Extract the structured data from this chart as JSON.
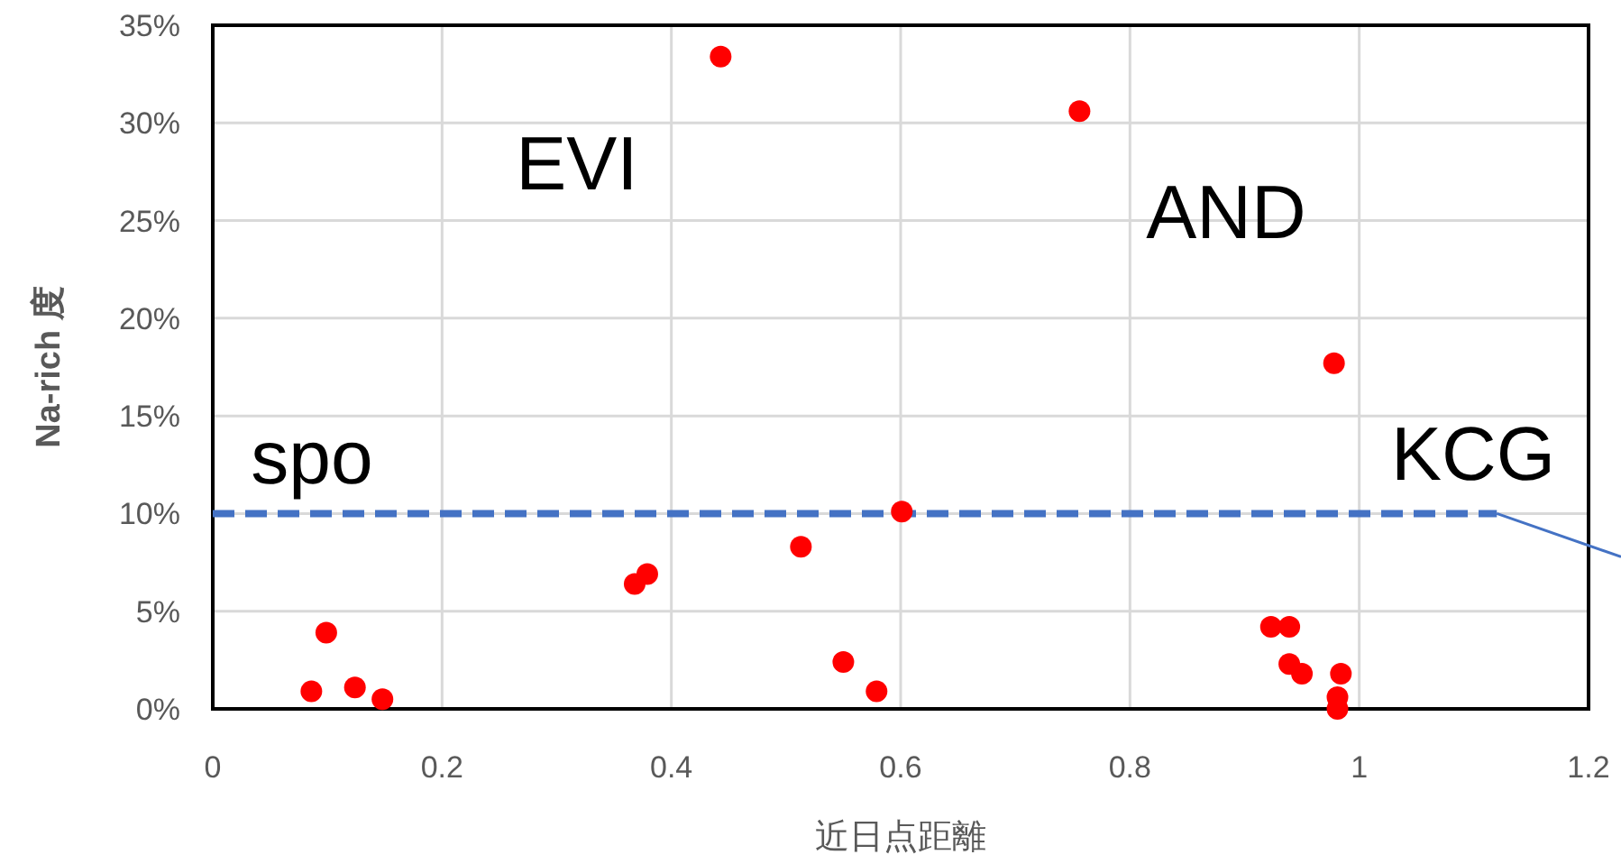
{
  "chart_data": {
    "type": "scatter",
    "xlabel": "近日点距離",
    "ylabel": "Na-rich 度",
    "xlim": [
      0,
      1.2
    ],
    "xticks": [
      0,
      0.2,
      0.4,
      0.6,
      0.8,
      1,
      1.2
    ],
    "ylim": [
      0,
      35
    ],
    "yticks": [
      {
        "value": 0,
        "label": "0%"
      },
      {
        "value": 5,
        "label": "5%"
      },
      {
        "value": 10,
        "label": "10%"
      },
      {
        "value": 15,
        "label": "15%"
      },
      {
        "value": 20,
        "label": "20%"
      },
      {
        "value": 25,
        "label": "25%"
      },
      {
        "value": 30,
        "label": "30%"
      },
      {
        "value": 35,
        "label": "35%"
      }
    ],
    "grid": true,
    "annotations": [
      "EVI",
      "AND",
      "spo",
      "KCG"
    ],
    "series": [
      {
        "type": "scatter",
        "color": "#ff0000",
        "marker": "circle",
        "x": [
          0.086,
          0.099,
          0.124,
          0.148,
          0.368,
          0.379,
          0.443,
          0.513,
          0.55,
          0.579,
          0.601,
          0.756,
          0.978,
          0.923,
          0.939,
          0.939,
          0.95,
          0.984,
          0.981,
          0.981
        ],
        "values": [
          0.9,
          3.9,
          1.1,
          0.5,
          6.4,
          6.9,
          33.4,
          8.3,
          2.4,
          0.9,
          10.1,
          30.6,
          17.7,
          4.2,
          4.2,
          2.3,
          1.8,
          1.8,
          0.6,
          0.0
        ]
      },
      {
        "type": "line",
        "color": "#4472c4",
        "line_style": "dashed",
        "marker": "none",
        "x": [
          0,
          1.12
        ],
        "values": [
          10,
          10
        ]
      }
    ]
  }
}
